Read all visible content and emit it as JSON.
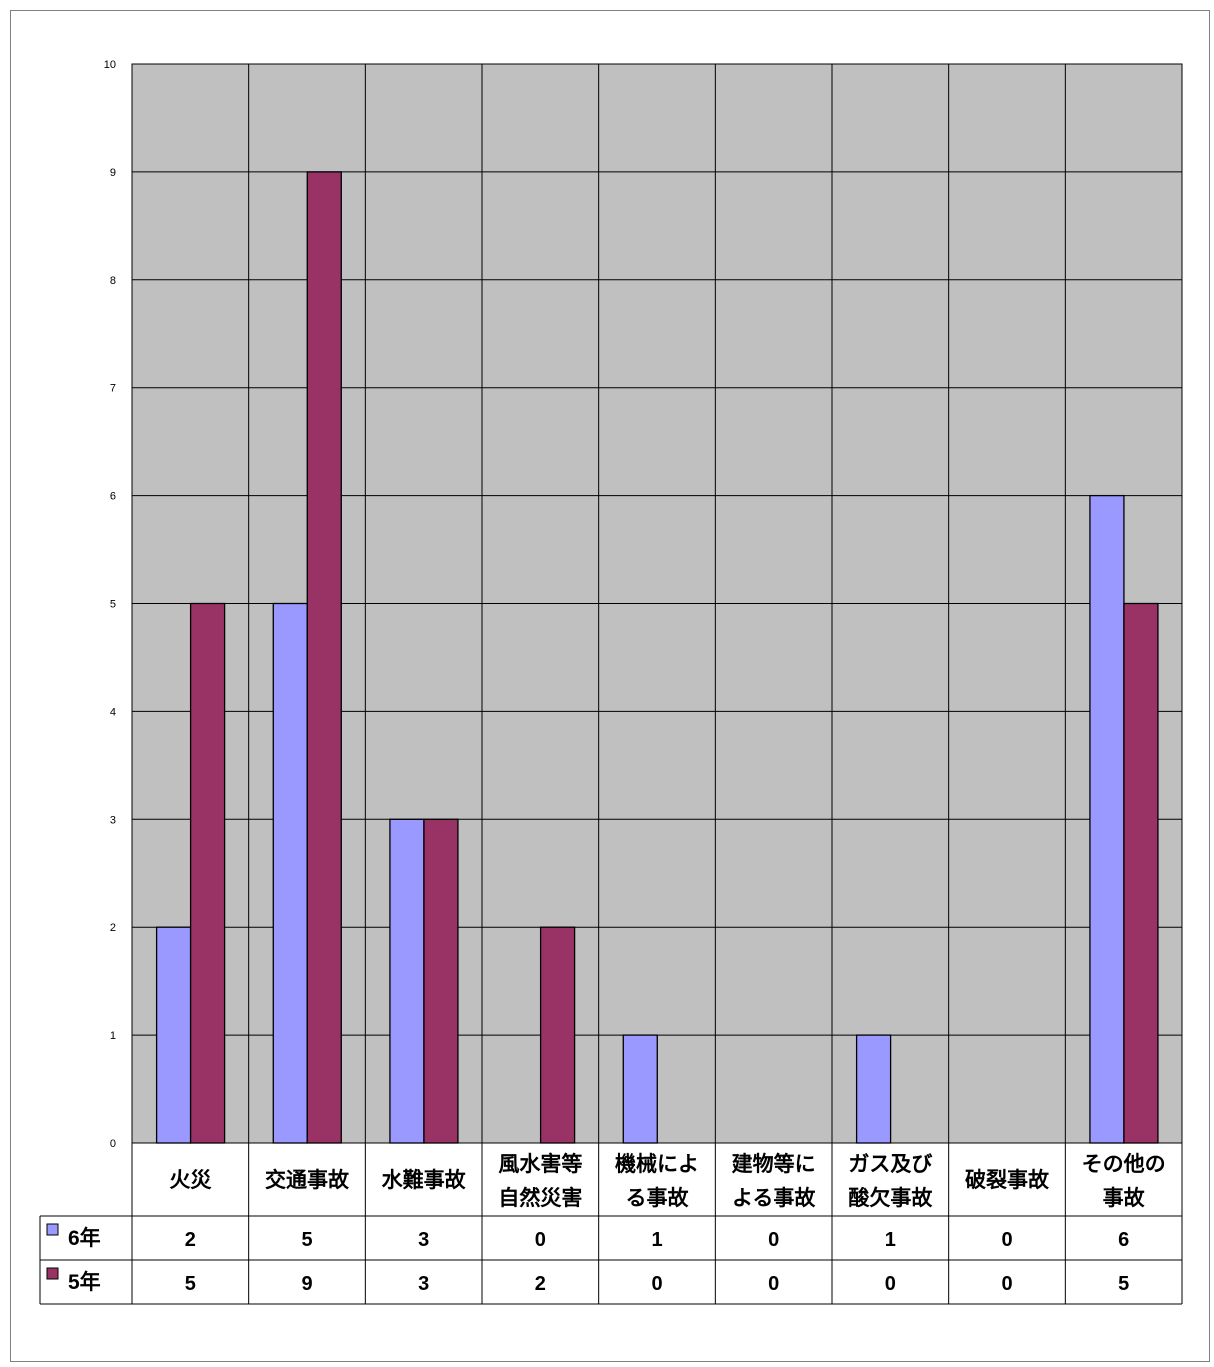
{
  "chart_data": {
    "type": "bar",
    "categories": [
      [
        "火災"
      ],
      [
        "交通事故"
      ],
      [
        "水難事故"
      ],
      [
        "風水害等",
        "自然災害"
      ],
      [
        "機械によ",
        "る事故"
      ],
      [
        "建物等に",
        "よる事故"
      ],
      [
        "ガス及び",
        "酸欠事故"
      ],
      [
        "破裂事故"
      ],
      [
        "その他の",
        "事故"
      ]
    ],
    "series": [
      {
        "name": "6年",
        "color": "#9999ff",
        "values": [
          2,
          5,
          3,
          0,
          1,
          0,
          1,
          0,
          6
        ]
      },
      {
        "name": "5年",
        "color": "#993366",
        "values": [
          5,
          9,
          3,
          2,
          0,
          0,
          0,
          0,
          5
        ]
      }
    ],
    "yticks": [
      "0",
      "1",
      "2",
      "3",
      "4",
      "5",
      "6",
      "7",
      "8",
      "9",
      "10"
    ],
    "ylim": [
      0,
      10
    ],
    "grid": true,
    "plot_background": "#c0c0c0",
    "legend": "data-table-left"
  }
}
